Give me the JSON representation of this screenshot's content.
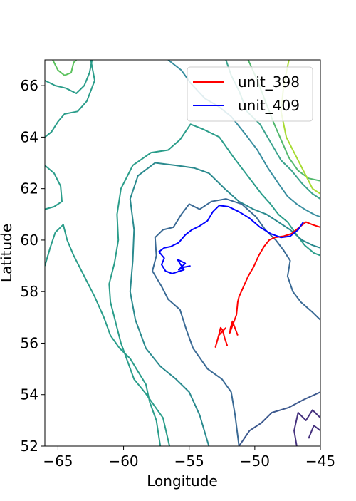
{
  "chart_data": {
    "type": "line",
    "title": "",
    "xlabel": "Longitude",
    "ylabel": "Latitude",
    "xlim": [
      -66,
      -45
    ],
    "ylim": [
      52,
      67
    ],
    "x_ticks": [
      -65,
      -60,
      -55,
      -50,
      -45
    ],
    "y_ticks": [
      52,
      54,
      56,
      58,
      60,
      62,
      64,
      66
    ],
    "grid": false,
    "legend_position": "top-right",
    "series": [
      {
        "name": "unit_398",
        "color": "#ff0000",
        "points": [
          [
            -51.3,
            56.3
          ],
          [
            -51.7,
            56.85
          ],
          [
            -51.85,
            56.6
          ],
          [
            -51.9,
            56.4
          ],
          [
            -51.65,
            56.75
          ],
          [
            -51.4,
            57.1
          ],
          [
            -51.3,
            57.6
          ],
          [
            -51.2,
            57.8
          ],
          [
            -50.9,
            58.15
          ],
          [
            -50.5,
            58.6
          ],
          [
            -50.1,
            58.95
          ],
          [
            -49.7,
            59.4
          ],
          [
            -49.3,
            59.75
          ],
          [
            -48.9,
            60.0
          ],
          [
            -48.5,
            60.1
          ],
          [
            -47.8,
            60.15
          ],
          [
            -47.2,
            60.25
          ],
          [
            -46.6,
            60.5
          ],
          [
            -46.1,
            60.7
          ],
          [
            -45.6,
            60.6
          ],
          [
            -45.0,
            60.5
          ]
        ],
        "hook": [
          [
            -52.1,
            55.9
          ],
          [
            -52.3,
            56.2
          ],
          [
            -52.45,
            56.5
          ],
          [
            -52.6,
            56.6
          ],
          [
            -52.8,
            56.2
          ],
          [
            -53.0,
            55.85
          ],
          [
            -52.75,
            56.3
          ],
          [
            -52.2,
            56.6
          ]
        ]
      },
      {
        "name": "unit_409",
        "color": "#0000ff",
        "points": [
          [
            -54.9,
            59.0
          ],
          [
            -55.4,
            58.95
          ],
          [
            -55.8,
            58.85
          ],
          [
            -55.3,
            59.1
          ],
          [
            -55.9,
            59.25
          ],
          [
            -55.4,
            58.85
          ],
          [
            -56.3,
            58.7
          ],
          [
            -56.8,
            58.8
          ],
          [
            -57.1,
            59.05
          ],
          [
            -56.9,
            59.3
          ],
          [
            -57.3,
            59.55
          ],
          [
            -56.9,
            59.7
          ],
          [
            -56.4,
            59.75
          ],
          [
            -55.8,
            59.9
          ],
          [
            -55.3,
            60.2
          ],
          [
            -54.8,
            60.4
          ],
          [
            -54.2,
            60.55
          ],
          [
            -53.6,
            60.75
          ],
          [
            -53.2,
            61.1
          ],
          [
            -52.7,
            61.35
          ],
          [
            -52.0,
            61.3
          ],
          [
            -51.2,
            61.1
          ],
          [
            -50.4,
            60.85
          ],
          [
            -49.6,
            60.5
          ],
          [
            -48.8,
            60.25
          ],
          [
            -48.0,
            60.1
          ],
          [
            -47.3,
            60.15
          ],
          [
            -46.7,
            60.4
          ],
          [
            -46.3,
            60.7
          ]
        ]
      }
    ],
    "contours": [
      {
        "color": "#2a9d8a",
        "points": [
          [
            -62.5,
            67.0
          ],
          [
            -62.2,
            66.2
          ],
          [
            -62.8,
            65.4
          ],
          [
            -63.5,
            65.0
          ],
          [
            -64.5,
            64.9
          ],
          [
            -65.0,
            64.6
          ],
          [
            -65.5,
            64.2
          ],
          [
            -66.0,
            64.0
          ]
        ]
      },
      {
        "color": "#2a9d8a",
        "points": [
          [
            -66.0,
            62.9
          ],
          [
            -65.3,
            62.6
          ],
          [
            -64.8,
            62.1
          ],
          [
            -64.7,
            61.5
          ],
          [
            -65.3,
            61.3
          ],
          [
            -66.0,
            61.2
          ]
        ]
      },
      {
        "color": "#2a9d8a",
        "points": [
          [
            -66.0,
            59.0
          ],
          [
            -65.6,
            59.7
          ],
          [
            -65.2,
            60.3
          ],
          [
            -64.6,
            60.6
          ],
          [
            -64.3,
            60.0
          ],
          [
            -63.8,
            59.4
          ],
          [
            -63.0,
            58.6
          ],
          [
            -62.2,
            57.8
          ],
          [
            -61.5,
            57.0
          ],
          [
            -61.0,
            56.3
          ],
          [
            -60.3,
            55.8
          ],
          [
            -59.5,
            55.4
          ],
          [
            -58.9,
            54.9
          ],
          [
            -58.3,
            54.4
          ],
          [
            -58.0,
            53.7
          ],
          [
            -57.5,
            53.0
          ],
          [
            -57.2,
            52.0
          ]
        ]
      },
      {
        "color": "#2a9d8a",
        "points": [
          [
            -56.5,
            52.0
          ],
          [
            -57.0,
            53.1
          ],
          [
            -57.7,
            53.6
          ],
          [
            -58.4,
            54.1
          ],
          [
            -59.2,
            54.6
          ],
          [
            -59.7,
            55.3
          ],
          [
            -60.2,
            56.0
          ],
          [
            -60.6,
            56.8
          ],
          [
            -61.0,
            57.6
          ],
          [
            -61.1,
            58.3
          ],
          [
            -60.7,
            59.1
          ],
          [
            -60.4,
            60.0
          ],
          [
            -60.5,
            61.0
          ],
          [
            -60.2,
            62.0
          ],
          [
            -59.3,
            62.9
          ],
          [
            -57.9,
            63.4
          ],
          [
            -56.6,
            63.5
          ],
          [
            -55.7,
            63.9
          ],
          [
            -54.9,
            64.5
          ],
          [
            -53.9,
            64.3
          ],
          [
            -52.7,
            64.0
          ],
          [
            -51.6,
            63.2
          ],
          [
            -50.4,
            62.4
          ],
          [
            -49.5,
            61.8
          ],
          [
            -48.8,
            61.4
          ],
          [
            -48.2,
            61.0
          ],
          [
            -47.5,
            60.7
          ],
          [
            -46.8,
            60.2
          ],
          [
            -46.2,
            59.8
          ],
          [
            -45.5,
            59.5
          ],
          [
            -45.0,
            59.4
          ]
        ]
      },
      {
        "color": "#2a8a8e",
        "points": [
          [
            -53.5,
            52.0
          ],
          [
            -54.2,
            53.2
          ],
          [
            -55.0,
            54.1
          ],
          [
            -56.0,
            54.6
          ],
          [
            -57.2,
            55.1
          ],
          [
            -58.3,
            55.8
          ],
          [
            -59.1,
            56.9
          ],
          [
            -59.5,
            58.0
          ],
          [
            -59.3,
            59.2
          ],
          [
            -59.2,
            60.4
          ],
          [
            -59.5,
            61.6
          ],
          [
            -58.9,
            62.5
          ],
          [
            -57.6,
            63.0
          ],
          [
            -56.0,
            62.9
          ],
          [
            -54.6,
            62.8
          ],
          [
            -53.5,
            62.6
          ],
          [
            -52.3,
            62.0
          ],
          [
            -51.2,
            61.5
          ],
          [
            -50.1,
            61.2
          ],
          [
            -49.1,
            61.0
          ],
          [
            -48.2,
            60.7
          ],
          [
            -47.3,
            60.4
          ],
          [
            -46.4,
            60.0
          ],
          [
            -45.6,
            59.8
          ],
          [
            -45.0,
            59.7
          ]
        ]
      },
      {
        "color": "#3a6a95",
        "points": [
          [
            -51.2,
            52.0
          ],
          [
            -51.5,
            53.2
          ],
          [
            -51.8,
            54.1
          ],
          [
            -52.5,
            54.6
          ],
          [
            -53.6,
            55.0
          ],
          [
            -54.7,
            55.8
          ],
          [
            -55.2,
            56.5
          ],
          [
            -55.7,
            57.3
          ],
          [
            -56.6,
            57.7
          ],
          [
            -57.1,
            58.2
          ],
          [
            -57.8,
            58.8
          ],
          [
            -57.5,
            59.4
          ],
          [
            -57.6,
            60.1
          ],
          [
            -57.0,
            60.4
          ],
          [
            -56.2,
            60.5
          ],
          [
            -55.6,
            61.0
          ],
          [
            -55.0,
            61.4
          ],
          [
            -54.2,
            61.2
          ],
          [
            -53.3,
            61.5
          ],
          [
            -52.2,
            61.6
          ],
          [
            -51.0,
            61.4
          ],
          [
            -49.9,
            60.9
          ],
          [
            -49.2,
            60.4
          ],
          [
            -48.4,
            60.0
          ],
          [
            -47.8,
            59.6
          ],
          [
            -47.3,
            59.2
          ],
          [
            -47.5,
            58.6
          ],
          [
            -47.1,
            58.0
          ],
          [
            -46.5,
            57.6
          ],
          [
            -45.6,
            57.2
          ],
          [
            -45.0,
            56.9
          ]
        ]
      },
      {
        "color": "#3e5a8f",
        "points": [
          [
            -51.2,
            52.0
          ],
          [
            -50.4,
            52.6
          ],
          [
            -49.5,
            52.9
          ],
          [
            -48.7,
            53.3
          ],
          [
            -47.4,
            53.5
          ],
          [
            -46.3,
            53.8
          ],
          [
            -45.0,
            54.1
          ]
        ]
      },
      {
        "color": "#3a8fa0",
        "points": [
          [
            -56.6,
            67.0
          ],
          [
            -55.6,
            66.6
          ],
          [
            -54.9,
            66.1
          ],
          [
            -53.8,
            65.5
          ],
          [
            -52.8,
            65.2
          ],
          [
            -51.8,
            64.8
          ],
          [
            -50.7,
            64.1
          ],
          [
            -49.8,
            63.5
          ],
          [
            -49.0,
            62.8
          ],
          [
            -48.2,
            62.2
          ],
          [
            -47.5,
            61.7
          ],
          [
            -46.8,
            61.4
          ],
          [
            -46.2,
            61.2
          ],
          [
            -45.5,
            61.0
          ],
          [
            -45.0,
            60.9
          ]
        ]
      },
      {
        "color": "#3aa38d",
        "points": [
          [
            -52.2,
            67.0
          ],
          [
            -51.8,
            66.4
          ],
          [
            -51.2,
            65.8
          ],
          [
            -50.6,
            65.0
          ],
          [
            -49.6,
            64.5
          ],
          [
            -48.8,
            63.8
          ],
          [
            -48.0,
            63.1
          ],
          [
            -47.2,
            62.7
          ],
          [
            -46.4,
            62.2
          ],
          [
            -45.6,
            61.8
          ],
          [
            -45.0,
            61.6
          ]
        ]
      },
      {
        "color": "#52b86e",
        "points": [
          [
            -50.5,
            67.0
          ],
          [
            -49.8,
            66.2
          ],
          [
            -49.2,
            65.4
          ],
          [
            -48.6,
            64.6
          ],
          [
            -48.0,
            63.9
          ],
          [
            -47.4,
            63.2
          ],
          [
            -46.7,
            62.7
          ],
          [
            -45.9,
            62.4
          ],
          [
            -45.0,
            62.3
          ]
        ]
      },
      {
        "color": "#a8db34",
        "points": [
          [
            -47.4,
            67.0
          ],
          [
            -47.8,
            66.0
          ],
          [
            -48.0,
            65.0
          ],
          [
            -47.6,
            64.0
          ],
          [
            -46.9,
            63.3
          ],
          [
            -46.2,
            62.6
          ],
          [
            -45.6,
            62.0
          ],
          [
            -45.0,
            61.8
          ]
        ]
      },
      {
        "color": "#2a9d8a",
        "points": [
          [
            -66.0,
            66.2
          ],
          [
            -65.2,
            66.0
          ],
          [
            -64.4,
            65.9
          ],
          [
            -63.6,
            65.7
          ],
          [
            -63.0,
            66.0
          ],
          [
            -62.6,
            66.5
          ],
          [
            -62.4,
            67.0
          ]
        ]
      },
      {
        "color": "#5cc25e",
        "points": [
          [
            -65.4,
            67.0
          ],
          [
            -65.0,
            66.6
          ],
          [
            -64.5,
            66.4
          ],
          [
            -64.0,
            66.5
          ],
          [
            -63.8,
            66.9
          ],
          [
            -63.6,
            67.0
          ]
        ]
      },
      {
        "color": "#46327e",
        "points": [
          [
            -46.8,
            52.0
          ],
          [
            -47.0,
            52.6
          ],
          [
            -46.7,
            53.3
          ],
          [
            -46.1,
            53.0
          ],
          [
            -45.6,
            53.4
          ],
          [
            -45.0,
            53.1
          ]
        ]
      },
      {
        "color": "#46327e",
        "points": [
          [
            -45.9,
            52.3
          ],
          [
            -45.5,
            52.8
          ],
          [
            -45.0,
            52.6
          ]
        ]
      }
    ]
  }
}
